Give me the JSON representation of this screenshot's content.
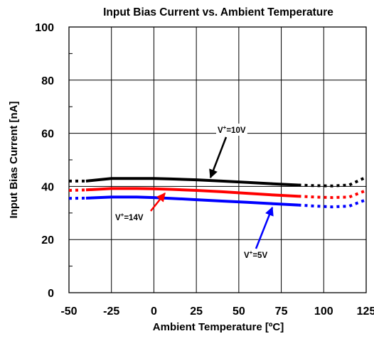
{
  "chart_data": {
    "type": "line",
    "title": "Input Bias Current vs. Ambient Temperature",
    "xlabel": "Ambient Temperature [ºC]",
    "ylabel": "Input Bias Current [nA]",
    "xlim": [
      -50,
      125
    ],
    "ylim": [
      0,
      100
    ],
    "xticks": [
      -50,
      -25,
      0,
      25,
      50,
      75,
      100,
      125
    ],
    "yticks": [
      0,
      20,
      40,
      60,
      80,
      100
    ],
    "grid": true,
    "series": [
      {
        "name": "V+=10V",
        "color": "#000000",
        "solid_x": [
          -40,
          -25,
          -10,
          0,
          10,
          25,
          40,
          55,
          70,
          85
        ],
        "solid_y": [
          42,
          43,
          43,
          43,
          42.8,
          42.5,
          42,
          41.5,
          41,
          40.5
        ],
        "dotted_x": [
          -50,
          -40,
          85,
          95,
          105,
          115,
          125
        ],
        "dotted_y": [
          42,
          42,
          40.5,
          40.3,
          40.2,
          40.5,
          43.5
        ],
        "label_main": "V",
        "label_sup": "+",
        "label_rest": "=10V"
      },
      {
        "name": "V+=14V",
        "color": "#ff0000",
        "solid_x": [
          -40,
          -25,
          -10,
          0,
          10,
          25,
          40,
          55,
          70,
          85
        ],
        "solid_y": [
          38.7,
          39.2,
          39.2,
          39.1,
          38.9,
          38.5,
          38,
          37.4,
          36.8,
          36.3
        ],
        "dotted_x": [
          -50,
          -40,
          85,
          95,
          105,
          115,
          125
        ],
        "dotted_y": [
          38.5,
          38.7,
          36.3,
          36,
          35.8,
          36,
          38.5
        ],
        "label_main": "V",
        "label_sup": "+",
        "label_rest": "=14V"
      },
      {
        "name": "V+=5V",
        "color": "#0000ff",
        "solid_x": [
          -40,
          -25,
          -10,
          0,
          10,
          25,
          40,
          55,
          70,
          85
        ],
        "solid_y": [
          35.6,
          36,
          36,
          35.8,
          35.5,
          35,
          34.5,
          34,
          33.5,
          33
        ],
        "dotted_x": [
          -50,
          -40,
          85,
          95,
          105,
          115,
          125
        ],
        "dotted_y": [
          35.5,
          35.6,
          33,
          32.6,
          32.3,
          32.6,
          35
        ],
        "label_main": "V",
        "label_sup": "+",
        "label_rest": "=5V"
      }
    ]
  }
}
